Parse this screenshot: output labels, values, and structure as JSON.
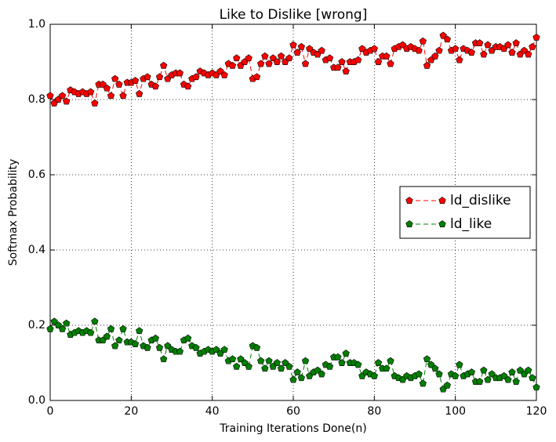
{
  "chart_data": {
    "type": "line",
    "title": "Like to Dislike [wrong]",
    "xlabel": "Training Iterations Done(n)",
    "ylabel": "Softmax Probability",
    "x": [
      0,
      1,
      2,
      3,
      4,
      5,
      6,
      7,
      8,
      9,
      10,
      11,
      12,
      13,
      14,
      15,
      16,
      17,
      18,
      19,
      20,
      21,
      22,
      23,
      24,
      25,
      26,
      27,
      28,
      29,
      30,
      31,
      32,
      33,
      34,
      35,
      36,
      37,
      38,
      39,
      40,
      41,
      42,
      43,
      44,
      45,
      46,
      47,
      48,
      49,
      50,
      51,
      52,
      53,
      54,
      55,
      56,
      57,
      58,
      59,
      60,
      61,
      62,
      63,
      64,
      65,
      66,
      67,
      68,
      69,
      70,
      71,
      72,
      73,
      74,
      75,
      76,
      77,
      78,
      79,
      80,
      81,
      82,
      83,
      84,
      85,
      86,
      87,
      88,
      89,
      90,
      91,
      92,
      93,
      94,
      95,
      96,
      97,
      98,
      99,
      100,
      101,
      102,
      103,
      104,
      105,
      106,
      107,
      108,
      109,
      110,
      111,
      112,
      113,
      114,
      115,
      116,
      117,
      118,
      119,
      120
    ],
    "series": [
      {
        "name": "ld_dislike",
        "color": "#ff0000",
        "values": [
          0.81,
          0.79,
          0.8,
          0.81,
          0.795,
          0.825,
          0.82,
          0.815,
          0.82,
          0.815,
          0.82,
          0.79,
          0.84,
          0.84,
          0.83,
          0.81,
          0.855,
          0.84,
          0.81,
          0.845,
          0.845,
          0.85,
          0.815,
          0.855,
          0.86,
          0.84,
          0.835,
          0.86,
          0.89,
          0.855,
          0.865,
          0.87,
          0.87,
          0.84,
          0.835,
          0.855,
          0.86,
          0.875,
          0.87,
          0.865,
          0.87,
          0.865,
          0.875,
          0.865,
          0.895,
          0.89,
          0.91,
          0.89,
          0.9,
          0.91,
          0.855,
          0.86,
          0.895,
          0.915,
          0.895,
          0.91,
          0.9,
          0.915,
          0.9,
          0.91,
          0.945,
          0.925,
          0.94,
          0.895,
          0.935,
          0.925,
          0.92,
          0.93,
          0.905,
          0.91,
          0.885,
          0.885,
          0.9,
          0.875,
          0.9,
          0.9,
          0.905,
          0.935,
          0.925,
          0.93,
          0.935,
          0.9,
          0.915,
          0.915,
          0.895,
          0.935,
          0.94,
          0.945,
          0.935,
          0.94,
          0.935,
          0.93,
          0.955,
          0.89,
          0.905,
          0.915,
          0.93,
          0.97,
          0.96,
          0.93,
          0.935,
          0.905,
          0.935,
          0.93,
          0.925,
          0.95,
          0.95,
          0.92,
          0.945,
          0.93,
          0.94,
          0.94,
          0.935,
          0.945,
          0.925,
          0.95,
          0.92,
          0.93,
          0.92,
          0.94,
          0.965
        ]
      },
      {
        "name": "ld_like",
        "color": "#008000",
        "values": [
          0.19,
          0.21,
          0.2,
          0.19,
          0.205,
          0.175,
          0.18,
          0.185,
          0.18,
          0.185,
          0.18,
          0.21,
          0.16,
          0.16,
          0.17,
          0.19,
          0.145,
          0.16,
          0.19,
          0.155,
          0.155,
          0.15,
          0.185,
          0.145,
          0.14,
          0.16,
          0.165,
          0.14,
          0.11,
          0.145,
          0.135,
          0.13,
          0.13,
          0.16,
          0.165,
          0.145,
          0.14,
          0.125,
          0.13,
          0.135,
          0.13,
          0.135,
          0.125,
          0.135,
          0.105,
          0.11,
          0.09,
          0.11,
          0.1,
          0.09,
          0.145,
          0.14,
          0.105,
          0.085,
          0.105,
          0.09,
          0.1,
          0.085,
          0.1,
          0.09,
          0.055,
          0.075,
          0.06,
          0.105,
          0.065,
          0.075,
          0.08,
          0.07,
          0.095,
          0.09,
          0.115,
          0.115,
          0.1,
          0.125,
          0.1,
          0.1,
          0.095,
          0.065,
          0.075,
          0.07,
          0.065,
          0.1,
          0.085,
          0.085,
          0.105,
          0.065,
          0.06,
          0.055,
          0.065,
          0.06,
          0.065,
          0.07,
          0.045,
          0.11,
          0.095,
          0.085,
          0.07,
          0.03,
          0.04,
          0.07,
          0.065,
          0.095,
          0.065,
          0.07,
          0.075,
          0.05,
          0.05,
          0.08,
          0.055,
          0.07,
          0.06,
          0.06,
          0.065,
          0.055,
          0.075,
          0.05,
          0.08,
          0.07,
          0.08,
          0.06,
          0.035
        ]
      }
    ],
    "xlim": [
      0,
      120
    ],
    "xticks": [
      0,
      20,
      40,
      60,
      80,
      100,
      120
    ],
    "ylim": [
      0,
      1
    ],
    "yticks": [
      {
        "value": 0,
        "label": "0.0"
      },
      0.2,
      0.4,
      0.6,
      0.8,
      {
        "value": 1,
        "label": "1.0"
      }
    ],
    "grid": true,
    "legend": "center right"
  }
}
